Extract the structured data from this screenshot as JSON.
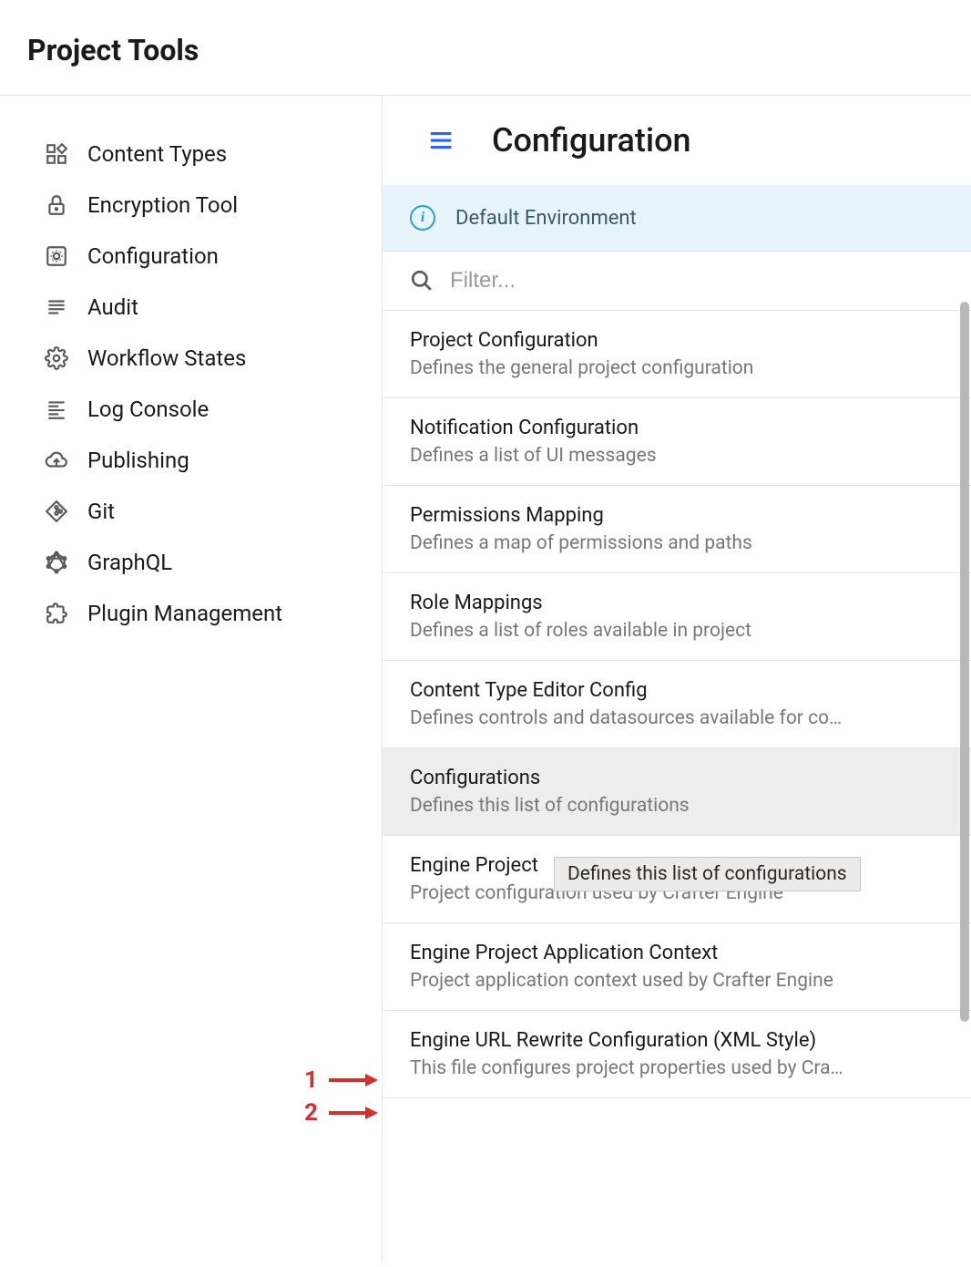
{
  "header": {
    "title": "Project Tools"
  },
  "sidebar": {
    "items": [
      {
        "label": "Content Types"
      },
      {
        "label": "Encryption Tool"
      },
      {
        "label": "Configuration"
      },
      {
        "label": "Audit"
      },
      {
        "label": "Workflow States"
      },
      {
        "label": "Log Console"
      },
      {
        "label": "Publishing"
      },
      {
        "label": "Git"
      },
      {
        "label": "GraphQL"
      },
      {
        "label": "Plugin Management"
      }
    ]
  },
  "main": {
    "title": "Configuration",
    "environment_label": "Default Environment",
    "filter_placeholder": "Filter...",
    "config_items": [
      {
        "title": "Project Configuration",
        "desc": "Defines the general project configuration",
        "selected": false
      },
      {
        "title": "Notification Configuration",
        "desc": "Defines a list of UI messages",
        "selected": false
      },
      {
        "title": "Permissions Mapping",
        "desc": "Defines a map of permissions and paths",
        "selected": false
      },
      {
        "title": "Role Mappings",
        "desc": "Defines a list of roles available in project",
        "selected": false
      },
      {
        "title": "Content Type Editor Config",
        "desc": "Defines controls and datasources available for co…",
        "selected": false
      },
      {
        "title": "Configurations",
        "desc": "Defines this list of configurations",
        "selected": true
      },
      {
        "title": "Engine Project",
        "desc": "Project configuration used by Crafter Engine",
        "selected": false
      },
      {
        "title": "Engine Project Application Context",
        "desc": "Project application context used by Crafter Engine",
        "selected": false
      },
      {
        "title": "Engine URL Rewrite Configuration (XML Style)",
        "desc": "This file configures project properties used by Cra…",
        "selected": false
      }
    ],
    "tooltip_text": "Defines this list of configurations"
  },
  "annotations": {
    "a1": "1",
    "a2": "2"
  },
  "colors": {
    "accent_blue": "#2962ff",
    "info_blue": "#2d9cdb",
    "env_bg": "#e8f4fb",
    "selected_bg": "#ededed",
    "border": "#e5e5e5",
    "text_primary": "#1a1a1a",
    "text_secondary": "#787878",
    "annotation_red": "#d32f2f"
  }
}
